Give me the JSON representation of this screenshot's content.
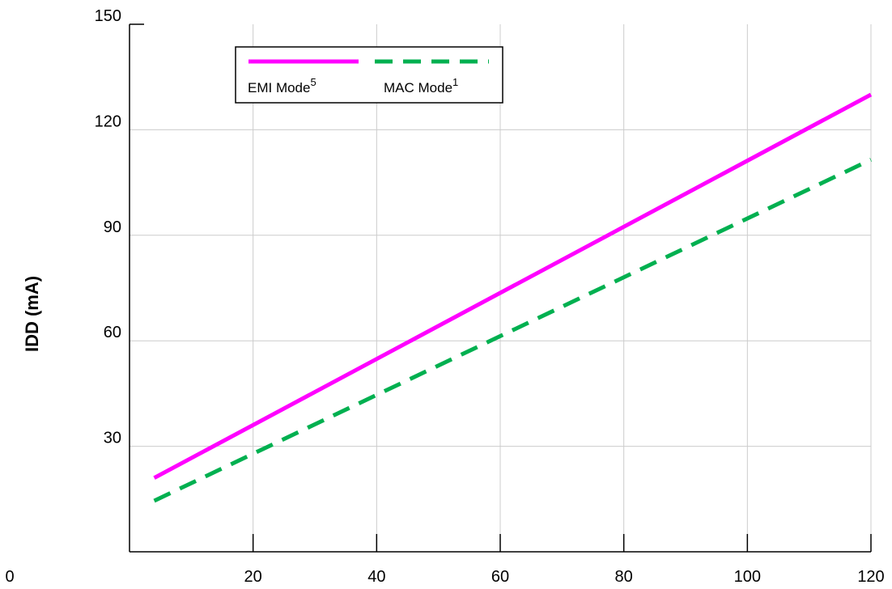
{
  "chart_data": {
    "type": "line",
    "title": "",
    "xlabel": "",
    "ylabel": "IDD (mA)",
    "xlim": [
      0,
      120
    ],
    "ylim": [
      0,
      150
    ],
    "x_ticks": [
      0,
      20,
      40,
      60,
      80,
      100,
      120
    ],
    "y_ticks": [
      30,
      60,
      90,
      120,
      150
    ],
    "grid": true,
    "legend_position": "top-left",
    "series": [
      {
        "name": "EMI Mode",
        "superscript": "5",
        "color": "#ff00ff",
        "style": "solid",
        "x": [
          4,
          120
        ],
        "y": [
          21,
          130
        ]
      },
      {
        "name": "MAC Mode",
        "superscript": "1",
        "color": "#00b050",
        "style": "dashed",
        "x": [
          4,
          120
        ],
        "y": [
          14.5,
          111.5
        ]
      }
    ]
  }
}
